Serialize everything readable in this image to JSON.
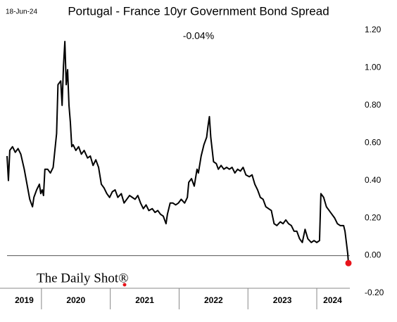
{
  "chart_data": {
    "type": "line",
    "title": "Portugal - France 10yr Government Bond Spread",
    "date": "18-Jun-24",
    "annotation": "-0.04%",
    "brand": "The Daily Shot®",
    "years": [
      2019,
      2020,
      2021,
      2022,
      2023,
      2024
    ],
    "xlim": [
      2019.5,
      2024.46
    ],
    "ylim": [
      -0.2,
      1.2
    ],
    "yticks": [
      {
        "value": -0.2,
        "label": "-0.20"
      },
      {
        "value": 0,
        "label": "0.00"
      },
      {
        "value": 0.2,
        "label": "0.20"
      },
      {
        "value": 0.4,
        "label": "0.40"
      },
      {
        "value": 0.6,
        "label": "0.60"
      },
      {
        "value": 0.8,
        "label": "0.80"
      },
      {
        "value": 1.0,
        "label": "1.00"
      },
      {
        "value": 1.2,
        "label": "1.20"
      }
    ],
    "marker_color": "#e8141b",
    "series": [
      {
        "color": "#000000",
        "x": [
          2019.5,
          2019.52,
          2019.54,
          2019.58,
          2019.62,
          2019.66,
          2019.7,
          2019.75,
          2019.79,
          2019.83,
          2019.87,
          2019.89,
          2019.93,
          2019.97,
          2019.99,
          2020.01,
          2020.03,
          2020.05,
          2020.09,
          2020.13,
          2020.17,
          2020.22,
          2020.24,
          2020.28,
          2020.3,
          2020.32,
          2020.34,
          2020.36,
          2020.38,
          2020.4,
          2020.42,
          2020.44,
          2020.46,
          2020.5,
          2020.54,
          2020.58,
          2020.62,
          2020.67,
          2020.71,
          2020.75,
          2020.79,
          2020.83,
          2020.87,
          2020.91,
          2020.95,
          2020.99,
          2021.03,
          2021.07,
          2021.11,
          2021.16,
          2021.2,
          2021.24,
          2021.28,
          2021.32,
          2021.36,
          2021.4,
          2021.44,
          2021.48,
          2021.52,
          2021.56,
          2021.61,
          2021.65,
          2021.69,
          2021.73,
          2021.77,
          2021.81,
          2021.83,
          2021.87,
          2021.91,
          2021.95,
          2021.99,
          2022.03,
          2022.08,
          2022.12,
          2022.14,
          2022.18,
          2022.22,
          2022.26,
          2022.28,
          2022.32,
          2022.36,
          2022.4,
          2022.42,
          2022.44,
          2022.46,
          2022.5,
          2022.54,
          2022.57,
          2022.61,
          2022.65,
          2022.69,
          2022.73,
          2022.77,
          2022.81,
          2022.85,
          2022.89,
          2022.93,
          2022.97,
          2023.02,
          2023.06,
          2023.1,
          2023.14,
          2023.18,
          2023.22,
          2023.26,
          2023.3,
          2023.34,
          2023.38,
          2023.42,
          2023.47,
          2023.51,
          2023.55,
          2023.59,
          2023.63,
          2023.67,
          2023.71,
          2023.75,
          2023.79,
          2023.83,
          2023.87,
          2023.92,
          2023.96,
          2024.0,
          2024.04,
          2024.06,
          2024.1,
          2024.14,
          2024.18,
          2024.22,
          2024.26,
          2024.3,
          2024.34,
          2024.39,
          2024.41,
          2024.43,
          2024.45,
          2024.46
        ],
        "values": [
          0.53,
          0.4,
          0.56,
          0.58,
          0.55,
          0.57,
          0.54,
          0.46,
          0.38,
          0.3,
          0.26,
          0.31,
          0.35,
          0.38,
          0.33,
          0.35,
          0.32,
          0.46,
          0.46,
          0.44,
          0.47,
          0.65,
          0.91,
          0.93,
          0.8,
          1.01,
          1.14,
          0.91,
          0.99,
          0.8,
          0.71,
          0.58,
          0.59,
          0.56,
          0.58,
          0.54,
          0.56,
          0.52,
          0.53,
          0.48,
          0.51,
          0.47,
          0.38,
          0.36,
          0.33,
          0.31,
          0.34,
          0.35,
          0.31,
          0.33,
          0.28,
          0.3,
          0.32,
          0.31,
          0.3,
          0.32,
          0.28,
          0.25,
          0.27,
          0.24,
          0.25,
          0.23,
          0.24,
          0.22,
          0.21,
          0.17,
          0.22,
          0.28,
          0.28,
          0.27,
          0.28,
          0.3,
          0.28,
          0.31,
          0.39,
          0.41,
          0.37,
          0.46,
          0.44,
          0.53,
          0.59,
          0.63,
          0.69,
          0.74,
          0.63,
          0.5,
          0.49,
          0.46,
          0.48,
          0.46,
          0.47,
          0.46,
          0.47,
          0.44,
          0.46,
          0.45,
          0.47,
          0.43,
          0.42,
          0.43,
          0.38,
          0.35,
          0.31,
          0.3,
          0.26,
          0.25,
          0.24,
          0.17,
          0.16,
          0.18,
          0.17,
          0.19,
          0.17,
          0.16,
          0.13,
          0.13,
          0.09,
          0.07,
          0.14,
          0.09,
          0.07,
          0.08,
          0.07,
          0.08,
          0.33,
          0.31,
          0.26,
          0.24,
          0.22,
          0.2,
          0.17,
          0.16,
          0.16,
          0.13,
          0.07,
          0.01,
          -0.04
        ]
      }
    ]
  }
}
